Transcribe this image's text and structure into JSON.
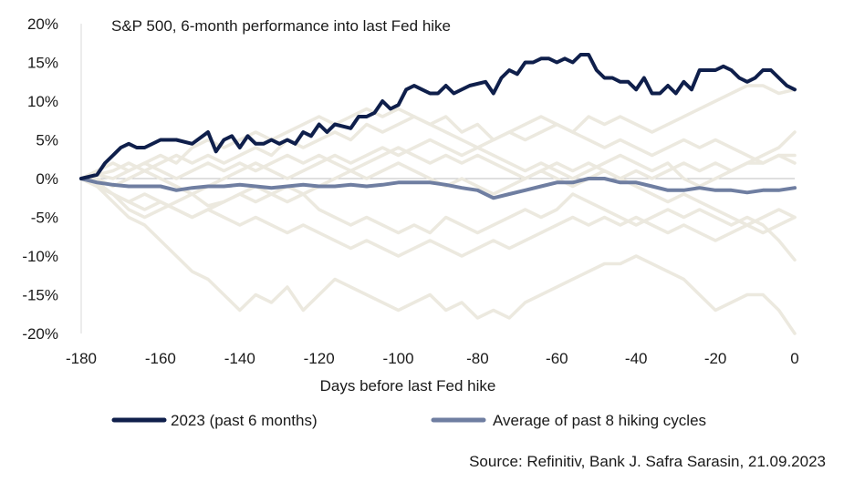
{
  "chart_data": {
    "type": "line",
    "title": "S&P 500, 6-month performance into last Fed hike",
    "xlabel": "Days before last Fed hike",
    "ylabel": "",
    "xlim": [
      -180,
      0
    ],
    "ylim": [
      -0.2,
      0.2
    ],
    "x_ticks": [
      -180,
      -160,
      -140,
      -120,
      -100,
      -80,
      -60,
      -40,
      -20,
      0
    ],
    "x_tick_labels": [
      "-180",
      "-160",
      "-140",
      "-120",
      "-100",
      "-80",
      "-60",
      "-40",
      "-20",
      "0"
    ],
    "y_ticks": [
      0.2,
      0.15,
      0.1,
      0.05,
      0.0,
      -0.05,
      -0.1,
      -0.15,
      -0.2
    ],
    "y_tick_labels": [
      "20%",
      "15%",
      "10%",
      "5%",
      "0%",
      "-5%",
      "-10%",
      "-15%",
      "-20%"
    ],
    "grid": false,
    "legend_position": "bottom",
    "source": "Source: Refinitiv, Bank J. Safra Sarasin, 21.09.2023",
    "legend": [
      {
        "label": "2023 (past 6 months)",
        "color": "#0f1f4b"
      },
      {
        "label": "Average of past 8 hiking cycles",
        "color": "#6f7ea1"
      }
    ],
    "series": [
      {
        "name": "2023 (past 6 months)",
        "color": "#0f1f4b",
        "x": [
          -180,
          -176,
          -174,
          -172,
          -170,
          -168,
          -166,
          -164,
          -160,
          -156,
          -152,
          -148,
          -146,
          -144,
          -142,
          -140,
          -138,
          -136,
          -134,
          -132,
          -130,
          -128,
          -126,
          -124,
          -122,
          -120,
          -118,
          -116,
          -112,
          -110,
          -108,
          -106,
          -104,
          -102,
          -100,
          -98,
          -96,
          -94,
          -92,
          -90,
          -88,
          -86,
          -82,
          -78,
          -76,
          -74,
          -72,
          -70,
          -68,
          -66,
          -64,
          -62,
          -60,
          -58,
          -56,
          -54,
          -52,
          -50,
          -48,
          -46,
          -44,
          -42,
          -40,
          -38,
          -36,
          -34,
          -32,
          -30,
          -28,
          -26,
          -24,
          -22,
          -20,
          -18,
          -16,
          -14,
          -12,
          -10,
          -8,
          -6,
          -4,
          -2,
          0
        ],
        "y": [
          0.0,
          0.005,
          0.02,
          0.03,
          0.04,
          0.045,
          0.04,
          0.04,
          0.05,
          0.05,
          0.045,
          0.06,
          0.035,
          0.05,
          0.055,
          0.04,
          0.055,
          0.045,
          0.045,
          0.05,
          0.045,
          0.05,
          0.045,
          0.06,
          0.055,
          0.07,
          0.06,
          0.07,
          0.065,
          0.08,
          0.08,
          0.085,
          0.1,
          0.09,
          0.095,
          0.115,
          0.12,
          0.115,
          0.11,
          0.11,
          0.12,
          0.11,
          0.12,
          0.125,
          0.11,
          0.13,
          0.14,
          0.135,
          0.15,
          0.15,
          0.155,
          0.155,
          0.15,
          0.155,
          0.15,
          0.16,
          0.16,
          0.14,
          0.13,
          0.13,
          0.125,
          0.125,
          0.115,
          0.13,
          0.11,
          0.11,
          0.12,
          0.11,
          0.125,
          0.115,
          0.14,
          0.14,
          0.14,
          0.145,
          0.14,
          0.13,
          0.125,
          0.13,
          0.14,
          0.14,
          0.13,
          0.12,
          0.115
        ]
      },
      {
        "name": "Average of past 8 hiking cycles",
        "color": "#6f7ea1",
        "x": [
          -180,
          -176,
          -172,
          -168,
          -164,
          -160,
          -156,
          -152,
          -148,
          -144,
          -140,
          -136,
          -132,
          -128,
          -124,
          -120,
          -116,
          -112,
          -108,
          -104,
          -100,
          -96,
          -92,
          -88,
          -84,
          -80,
          -76,
          -72,
          -68,
          -64,
          -60,
          -56,
          -52,
          -48,
          -44,
          -40,
          -36,
          -32,
          -28,
          -24,
          -20,
          -16,
          -12,
          -8,
          -4,
          0
        ],
        "y": [
          0.0,
          -0.005,
          -0.008,
          -0.01,
          -0.01,
          -0.01,
          -0.015,
          -0.012,
          -0.01,
          -0.01,
          -0.008,
          -0.01,
          -0.012,
          -0.01,
          -0.008,
          -0.01,
          -0.01,
          -0.008,
          -0.01,
          -0.008,
          -0.005,
          -0.005,
          -0.005,
          -0.008,
          -0.012,
          -0.015,
          -0.025,
          -0.02,
          -0.015,
          -0.01,
          -0.005,
          -0.005,
          0.0,
          0.0,
          -0.005,
          -0.005,
          -0.01,
          -0.015,
          -0.015,
          -0.012,
          -0.015,
          -0.015,
          -0.018,
          -0.015,
          -0.015,
          -0.012
        ]
      },
      {
        "name": "",
        "color": "#ece9df",
        "x": [
          -180,
          -176,
          -172,
          -168,
          -164,
          -160,
          -156,
          -152,
          -148,
          -144,
          -140,
          -136,
          -132,
          -128,
          -124,
          -120,
          -116,
          -112,
          -108,
          -104,
          -100,
          -96,
          -92,
          -88,
          -84,
          -80,
          -76,
          -72,
          -68,
          -64,
          -60,
          -56,
          -52,
          -48,
          -44,
          -40,
          -36,
          -32,
          -28,
          -24,
          -20,
          -16,
          -12,
          -8,
          -4,
          0
        ],
        "y": [
          0.0,
          -0.01,
          -0.03,
          -0.05,
          -0.06,
          -0.08,
          -0.1,
          -0.12,
          -0.13,
          -0.15,
          -0.17,
          -0.15,
          -0.16,
          -0.14,
          -0.17,
          -0.15,
          -0.13,
          -0.14,
          -0.15,
          -0.16,
          -0.17,
          -0.16,
          -0.15,
          -0.17,
          -0.16,
          -0.18,
          -0.17,
          -0.18,
          -0.16,
          -0.15,
          -0.14,
          -0.13,
          -0.12,
          -0.11,
          -0.11,
          -0.1,
          -0.11,
          -0.12,
          -0.13,
          -0.15,
          -0.17,
          -0.16,
          -0.15,
          -0.15,
          -0.17,
          -0.2
        ]
      },
      {
        "name": "",
        "color": "#ece9df",
        "x": [
          -180,
          -176,
          -172,
          -168,
          -164,
          -160,
          -156,
          -152,
          -148,
          -144,
          -140,
          -136,
          -132,
          -128,
          -124,
          -120,
          -116,
          -112,
          -108,
          -104,
          -100,
          -96,
          -92,
          -88,
          -84,
          -80,
          -76,
          -72,
          -68,
          -64,
          -60,
          -56,
          -52,
          -48,
          -44,
          -40,
          -36,
          -32,
          -28,
          -24,
          -20,
          -16,
          -12,
          -8,
          -4,
          0
        ],
        "y": [
          0.0,
          -0.005,
          -0.02,
          -0.04,
          -0.05,
          -0.04,
          -0.03,
          -0.02,
          -0.035,
          -0.03,
          -0.02,
          -0.01,
          -0.02,
          -0.03,
          -0.02,
          -0.04,
          -0.05,
          -0.06,
          -0.05,
          -0.06,
          -0.07,
          -0.06,
          -0.07,
          -0.05,
          -0.06,
          -0.07,
          -0.06,
          -0.05,
          -0.04,
          -0.05,
          -0.04,
          -0.02,
          -0.03,
          -0.04,
          -0.05,
          -0.06,
          -0.05,
          -0.04,
          -0.05,
          -0.04,
          -0.05,
          -0.06,
          -0.05,
          -0.06,
          -0.08,
          -0.105
        ]
      },
      {
        "name": "",
        "color": "#ece9df",
        "x": [
          -180,
          -176,
          -172,
          -168,
          -164,
          -160,
          -156,
          -152,
          -148,
          -144,
          -140,
          -136,
          -132,
          -128,
          -124,
          -120,
          -116,
          -112,
          -108,
          -104,
          -100,
          -96,
          -92,
          -88,
          -84,
          -80,
          -76,
          -72,
          -68,
          -64,
          -60,
          -56,
          -52,
          -48,
          -44,
          -40,
          -36,
          -32,
          -28,
          -24,
          -20,
          -16,
          -12,
          -8,
          -4,
          0
        ],
        "y": [
          0.0,
          0.005,
          0.01,
          0.02,
          0.01,
          0.02,
          0.03,
          0.02,
          0.03,
          0.02,
          0.03,
          0.04,
          0.03,
          0.05,
          0.04,
          0.05,
          0.06,
          0.05,
          0.07,
          0.06,
          0.07,
          0.08,
          0.07,
          0.08,
          0.06,
          0.07,
          0.05,
          0.06,
          0.07,
          0.08,
          0.07,
          0.06,
          0.08,
          0.07,
          0.08,
          0.07,
          0.06,
          0.07,
          0.08,
          0.09,
          0.1,
          0.11,
          0.12,
          0.12,
          0.11,
          0.115
        ]
      },
      {
        "name": "",
        "color": "#ece9df",
        "x": [
          -180,
          -176,
          -172,
          -168,
          -164,
          -160,
          -156,
          -152,
          -148,
          -144,
          -140,
          -136,
          -132,
          -128,
          -124,
          -120,
          -116,
          -112,
          -108,
          -104,
          -100,
          -96,
          -92,
          -88,
          -84,
          -80,
          -76,
          -72,
          -68,
          -64,
          -60,
          -56,
          -52,
          -48,
          -44,
          -40,
          -36,
          -32,
          -28,
          -24,
          -20,
          -16,
          -12,
          -8,
          -4,
          0
        ],
        "y": [
          0.0,
          -0.01,
          -0.02,
          -0.03,
          -0.04,
          -0.03,
          -0.04,
          -0.05,
          -0.04,
          -0.03,
          -0.02,
          -0.03,
          -0.02,
          -0.01,
          -0.02,
          -0.01,
          0.0,
          0.01,
          0.0,
          0.01,
          0.02,
          0.01,
          0.0,
          -0.01,
          0.0,
          -0.01,
          -0.02,
          -0.01,
          0.0,
          0.01,
          0.02,
          0.01,
          0.02,
          0.01,
          0.0,
          -0.01,
          -0.02,
          -0.03,
          -0.02,
          -0.03,
          -0.04,
          -0.05,
          -0.06,
          -0.05,
          -0.04,
          -0.05
        ]
      },
      {
        "name": "",
        "color": "#ece9df",
        "x": [
          -180,
          -176,
          -172,
          -168,
          -164,
          -160,
          -156,
          -152,
          -148,
          -144,
          -140,
          -136,
          -132,
          -128,
          -124,
          -120,
          -116,
          -112,
          -108,
          -104,
          -100,
          -96,
          -92,
          -88,
          -84,
          -80,
          -76,
          -72,
          -68,
          -64,
          -60,
          -56,
          -52,
          -48,
          -44,
          -40,
          -36,
          -32,
          -28,
          -24,
          -20,
          -16,
          -12,
          -8,
          -4,
          0
        ],
        "y": [
          0.0,
          0.01,
          0.02,
          0.01,
          0.02,
          0.03,
          0.02,
          0.04,
          0.05,
          0.04,
          0.05,
          0.06,
          0.05,
          0.06,
          0.07,
          0.08,
          0.07,
          0.08,
          0.09,
          0.08,
          0.09,
          0.08,
          0.07,
          0.06,
          0.05,
          0.04,
          0.03,
          0.02,
          0.01,
          0.02,
          0.01,
          0.0,
          0.01,
          0.02,
          0.03,
          0.02,
          0.01,
          0.02,
          0.0,
          -0.01,
          0.0,
          0.01,
          0.02,
          0.03,
          0.04,
          0.06
        ]
      },
      {
        "name": "",
        "color": "#ece9df",
        "x": [
          -180,
          -176,
          -172,
          -168,
          -164,
          -160,
          -156,
          -152,
          -148,
          -144,
          -140,
          -136,
          -132,
          -128,
          -124,
          -120,
          -116,
          -112,
          -108,
          -104,
          -100,
          -96,
          -92,
          -88,
          -84,
          -80,
          -76,
          -72,
          -68,
          -64,
          -60,
          -56,
          -52,
          -48,
          -44,
          -40,
          -36,
          -32,
          -28,
          -24,
          -20,
          -16,
          -12,
          -8,
          -4,
          0
        ],
        "y": [
          0.0,
          0.005,
          0.0,
          0.01,
          0.02,
          0.01,
          0.0,
          0.01,
          0.02,
          0.01,
          0.02,
          0.01,
          0.02,
          0.03,
          0.02,
          0.03,
          0.02,
          0.01,
          0.02,
          0.03,
          0.04,
          0.03,
          0.02,
          0.03,
          0.02,
          0.03,
          0.02,
          0.01,
          0.0,
          0.01,
          0.0,
          -0.01,
          0.0,
          0.01,
          0.0,
          0.01,
          0.0,
          0.01,
          0.02,
          0.01,
          0.02,
          0.01,
          0.02,
          0.02,
          0.03,
          0.03
        ]
      },
      {
        "name": "",
        "color": "#ece9df",
        "x": [
          -180,
          -176,
          -172,
          -168,
          -164,
          -160,
          -156,
          -152,
          -148,
          -144,
          -140,
          -136,
          -132,
          -128,
          -124,
          -120,
          -116,
          -112,
          -108,
          -104,
          -100,
          -96,
          -92,
          -88,
          -84,
          -80,
          -76,
          -72,
          -68,
          -64,
          -60,
          -56,
          -52,
          -48,
          -44,
          -40,
          -36,
          -32,
          -28,
          -24,
          -20,
          -16,
          -12,
          -8,
          -4,
          0
        ],
        "y": [
          0.0,
          -0.01,
          -0.02,
          -0.03,
          -0.02,
          -0.03,
          -0.04,
          -0.05,
          -0.04,
          -0.05,
          -0.06,
          -0.05,
          -0.06,
          -0.07,
          -0.06,
          -0.07,
          -0.08,
          -0.09,
          -0.08,
          -0.09,
          -0.1,
          -0.09,
          -0.08,
          -0.09,
          -0.1,
          -0.09,
          -0.08,
          -0.09,
          -0.08,
          -0.07,
          -0.06,
          -0.05,
          -0.06,
          -0.05,
          -0.06,
          -0.05,
          -0.06,
          -0.07,
          -0.06,
          -0.07,
          -0.08,
          -0.07,
          -0.06,
          -0.07,
          -0.06,
          -0.05
        ]
      },
      {
        "name": "",
        "color": "#ece9df",
        "x": [
          -180,
          -176,
          -172,
          -168,
          -164,
          -160,
          -156,
          -152,
          -148,
          -144,
          -140,
          -136,
          -132,
          -128,
          -124,
          -120,
          -116,
          -112,
          -108,
          -104,
          -100,
          -96,
          -92,
          -88,
          -84,
          -80,
          -76,
          -72,
          -68,
          -64,
          -60,
          -56,
          -52,
          -48,
          -44,
          -40,
          -36,
          -32,
          -28,
          -24,
          -20,
          -16,
          -12,
          -8,
          -4,
          0
        ],
        "y": [
          0.0,
          0.0,
          -0.01,
          0.0,
          0.01,
          0.0,
          -0.01,
          -0.02,
          -0.01,
          0.0,
          0.01,
          0.02,
          0.01,
          0.0,
          0.01,
          0.02,
          0.03,
          0.02,
          0.03,
          0.04,
          0.03,
          0.04,
          0.05,
          0.04,
          0.03,
          0.04,
          0.05,
          0.06,
          0.05,
          0.06,
          0.07,
          0.06,
          0.05,
          0.04,
          0.05,
          0.04,
          0.03,
          0.04,
          0.05,
          0.04,
          0.05,
          0.04,
          0.03,
          0.02,
          0.03,
          0.02
        ]
      }
    ]
  }
}
